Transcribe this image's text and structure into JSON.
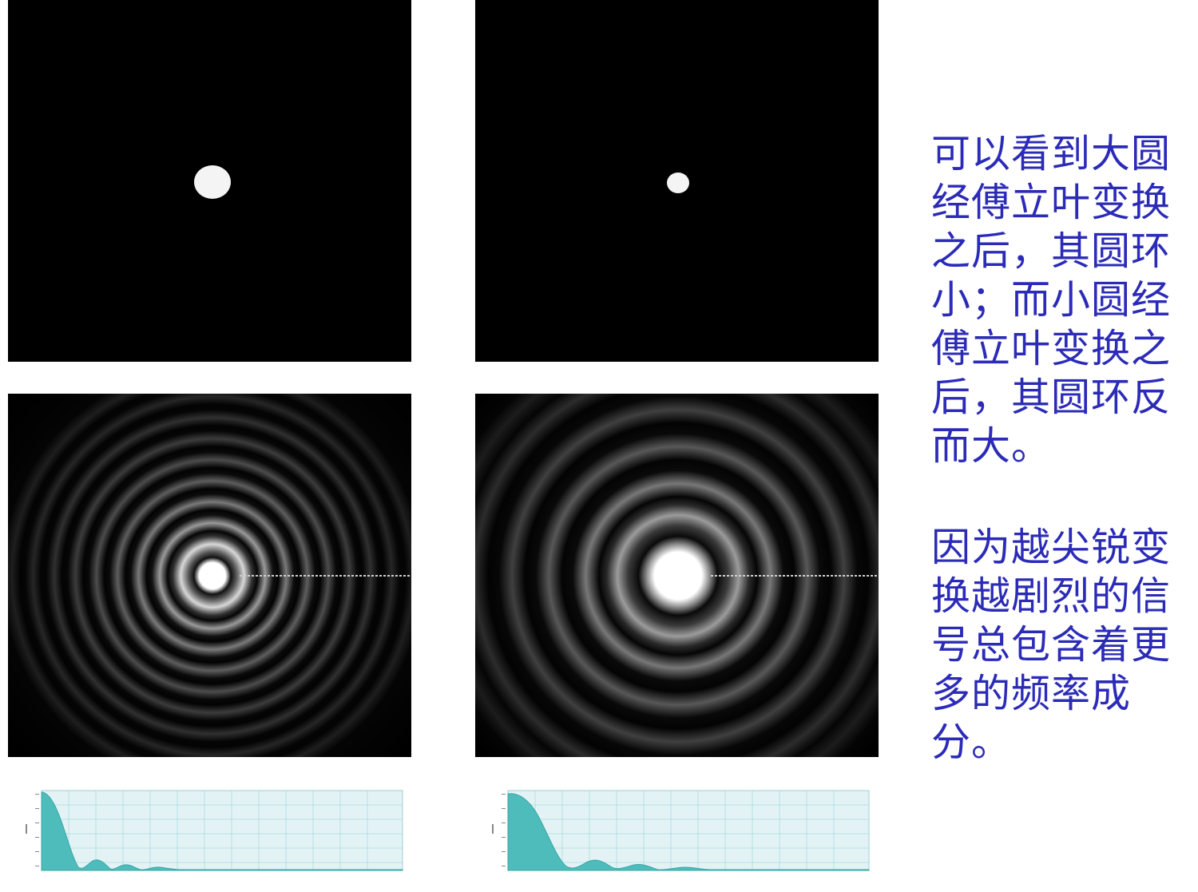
{
  "panels": {
    "circle_large": {
      "content": "small bright white disc centered on black background (larger disc)"
    },
    "circle_small": {
      "content": "smaller bright white disc centered on black background"
    },
    "ft_large": {
      "content": "Fourier transform magnitude: central bright spot with many closely spaced concentric rings"
    },
    "ft_small": {
      "content": "Fourier transform magnitude: larger central bright spot with wider spaced concentric rings"
    }
  },
  "text": {
    "paragraph_1": "可以看到大圆\n经傅立叶变换\n之后，其圆环\n小；而小圆经\n傅立叶变换之\n后，其圆环反\n而大。",
    "paragraph_2": "因为越尖锐变\n换越剧烈的信\n号总包含着更\n多的频率成分。"
  },
  "colors": {
    "text": "#2b2bb8",
    "plot_fill": "#4fbcbc",
    "plot_bg": "#e3f3f5",
    "plot_grid": "#8fd0d6"
  },
  "profiles": {
    "large": {
      "shape": "sinc-like radial intensity profile, narrow main lobe"
    },
    "small": {
      "shape": "sinc-like radial intensity profile, wider main lobe"
    }
  }
}
